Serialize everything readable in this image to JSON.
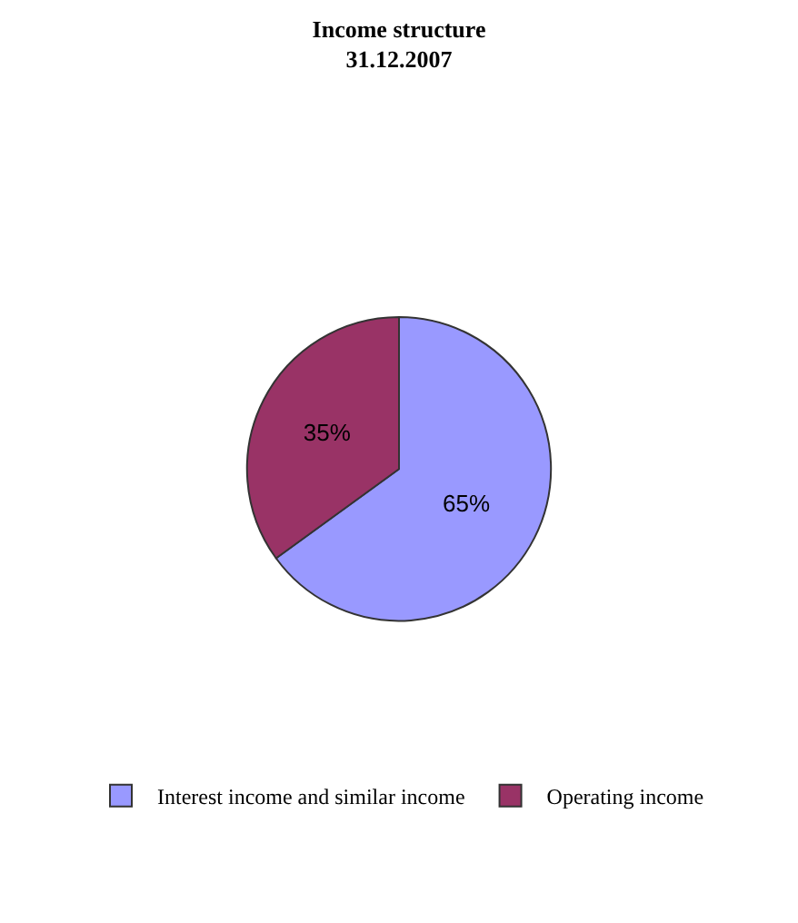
{
  "chart_data": {
    "type": "pie",
    "title": "Income structure",
    "subtitle": "31.12.2007",
    "categories": [
      "Interest income and similar income",
      "Operating income"
    ],
    "values": [
      65,
      35
    ],
    "value_labels": [
      "65%",
      "35%"
    ],
    "colors": [
      "#9999ff",
      "#993366"
    ],
    "legend": "bottom"
  }
}
